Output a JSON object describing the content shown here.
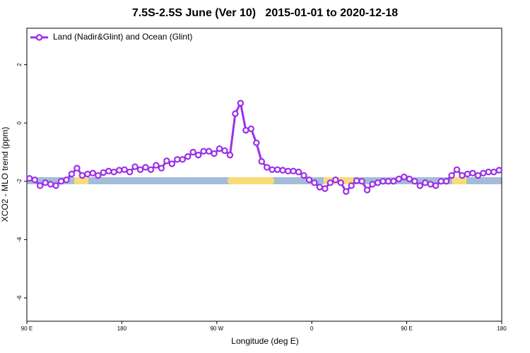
{
  "chart_data": {
    "type": "line",
    "title": "7.5S-2.5S June (Ver 10)   2015-01-01 to 2020-12-18",
    "xlabel": "Longitude (deg E)",
    "ylabel": "XCO2 - MLO trend (ppm)",
    "xlim": [
      90,
      540
    ],
    "ylim": [
      -6.8,
      3.25
    ],
    "xticks": [
      {
        "value": 90,
        "label": "90 E"
      },
      180,
      {
        "value": 270,
        "label": "90 W"
      },
      {
        "value": 360,
        "label": "0"
      },
      {
        "value": 450,
        "label": "90 E"
      },
      {
        "value": 540,
        "label": "180"
      }
    ],
    "yticks": [
      2,
      0,
      -2,
      -4,
      -6
    ],
    "legend": "upper left",
    "x": [
      92.5,
      97.5,
      102.5,
      107.5,
      112.5,
      117.5,
      122.5,
      127.5,
      132.5,
      137.5,
      142.5,
      147.5,
      152.5,
      157.5,
      162.5,
      167.5,
      172.5,
      177.5,
      182.5,
      187.5,
      192.5,
      197.5,
      202.5,
      207.5,
      212.5,
      217.5,
      222.5,
      227.5,
      232.5,
      237.5,
      242.5,
      247.5,
      252.5,
      257.5,
      262.5,
      267.5,
      272.5,
      277.5,
      282.5,
      287.5,
      292.5,
      297.5,
      302.5,
      307.5,
      312.5,
      317.5,
      322.5,
      327.5,
      332.5,
      337.5,
      342.5,
      347.5,
      352.5,
      357.5,
      362.5,
      367.5,
      372.5,
      377.5,
      382.5,
      387.5,
      392.5,
      397.5,
      402.5,
      407.5,
      412.5,
      417.5,
      422.5,
      427.5,
      432.5,
      437.5,
      442.5,
      447.5,
      452.5,
      457.5,
      462.5,
      467.5,
      472.5,
      477.5,
      482.5,
      487.5,
      492.5,
      497.5,
      502.5,
      507.5,
      512.5,
      517.5,
      522.5,
      527.5,
      532.5,
      537.5
    ],
    "series": [
      {
        "name": "Land (Nadir&Glint) and Ocean (Glint)",
        "color": "#9b30e8",
        "values": [
          -1.9,
          -1.95,
          -2.15,
          -2.05,
          -2.1,
          -2.15,
          -2.0,
          -1.95,
          -1.75,
          -1.55,
          -1.8,
          -1.75,
          -1.72,
          -1.8,
          -1.7,
          -1.65,
          -1.68,
          -1.62,
          -1.6,
          -1.68,
          -1.5,
          -1.6,
          -1.52,
          -1.6,
          -1.45,
          -1.55,
          -1.3,
          -1.4,
          -1.25,
          -1.25,
          -1.15,
          -1.0,
          -1.1,
          -0.97,
          -0.97,
          -1.05,
          -0.88,
          -0.95,
          -1.1,
          0.32,
          0.68,
          -0.25,
          -0.2,
          -0.68,
          -1.32,
          -1.52,
          -1.6,
          -1.6,
          -1.62,
          -1.65,
          -1.65,
          -1.68,
          -1.8,
          -1.95,
          -2.05,
          -2.2,
          -2.25,
          -2.05,
          -1.95,
          -2.05,
          -2.35,
          -2.15,
          -1.98,
          -2.0,
          -2.3,
          -2.1,
          -2.05,
          -2.0,
          -2.0,
          -2.0,
          -1.92,
          -1.85,
          -1.92,
          -2.0,
          -2.15,
          -2.05,
          -2.1,
          -2.15,
          -2.0,
          -2.0,
          -1.8,
          -1.6,
          -1.8,
          -1.75,
          -1.72,
          -1.8,
          -1.72,
          -1.68,
          -1.68,
          -1.62
        ]
      }
    ]
  }
}
